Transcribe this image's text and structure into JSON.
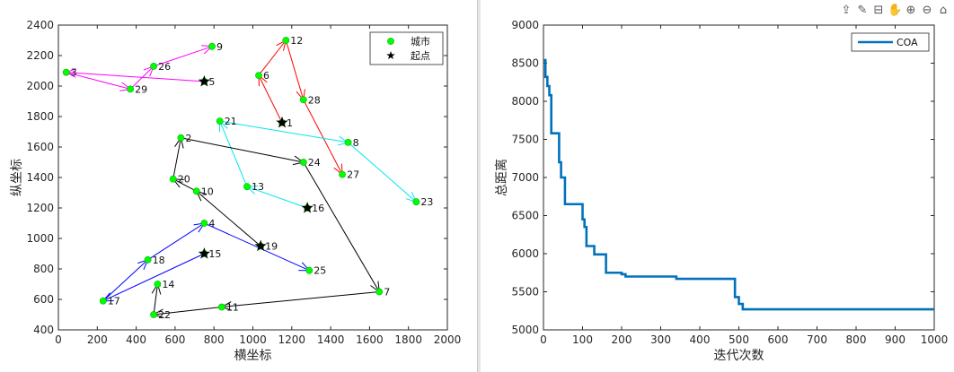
{
  "chart_data": [
    {
      "type": "scatter",
      "title": "",
      "xlabel": "横坐标",
      "ylabel": "纵坐标",
      "xlim": [
        0,
        2000
      ],
      "ylim": [
        400,
        2400
      ],
      "xticks": [
        "0",
        "200",
        "400",
        "600",
        "800",
        "1000",
        "1200",
        "1400",
        "1600",
        "1800",
        "2000"
      ],
      "yticks": [
        "400",
        "600",
        "800",
        "1000",
        "1200",
        "1400",
        "1600",
        "1800",
        "2000",
        "2200",
        "2400"
      ],
      "legend": {
        "position": "top-right",
        "entries": [
          "城市",
          "起点"
        ]
      },
      "cities": [
        {
          "id": "1",
          "x": 1150,
          "y": 1760
        },
        {
          "id": "2",
          "x": 630,
          "y": 1660
        },
        {
          "id": "3",
          "x": 40,
          "y": 2090
        },
        {
          "id": "4",
          "x": 750,
          "y": 1100
        },
        {
          "id": "5",
          "x": 750,
          "y": 2030
        },
        {
          "id": "6",
          "x": 1030,
          "y": 2070
        },
        {
          "id": "7",
          "x": 1650,
          "y": 650
        },
        {
          "id": "8",
          "x": 1490,
          "y": 1630
        },
        {
          "id": "9",
          "x": 790,
          "y": 2260
        },
        {
          "id": "10",
          "x": 710,
          "y": 1310
        },
        {
          "id": "11",
          "x": 840,
          "y": 550
        },
        {
          "id": "12",
          "x": 1170,
          "y": 2300
        },
        {
          "id": "13",
          "x": 970,
          "y": 1340
        },
        {
          "id": "14",
          "x": 510,
          "y": 700
        },
        {
          "id": "15",
          "x": 750,
          "y": 900
        },
        {
          "id": "16",
          "x": 1280,
          "y": 1200
        },
        {
          "id": "17",
          "x": 230,
          "y": 590
        },
        {
          "id": "18",
          "x": 460,
          "y": 860
        },
        {
          "id": "19",
          "x": 1040,
          "y": 950
        },
        {
          "id": "20",
          "x": 590,
          "y": 1390
        },
        {
          "id": "21",
          "x": 830,
          "y": 1770
        },
        {
          "id": "22",
          "x": 490,
          "y": 500
        },
        {
          "id": "23",
          "x": 1840,
          "y": 1240
        },
        {
          "id": "24",
          "x": 1260,
          "y": 1500
        },
        {
          "id": "25",
          "x": 1290,
          "y": 790
        },
        {
          "id": "26",
          "x": 490,
          "y": 2130
        },
        {
          "id": "27",
          "x": 1460,
          "y": 1420
        },
        {
          "id": "28",
          "x": 1260,
          "y": 1910
        },
        {
          "id": "29",
          "x": 370,
          "y": 1980
        }
      ],
      "start_points": [
        "1",
        "5",
        "15",
        "16",
        "19"
      ],
      "routes": [
        {
          "color": "#ff0000",
          "path": [
            "1",
            "6",
            "12",
            "28",
            "27"
          ]
        },
        {
          "color": "#ff00ff",
          "path": [
            "5",
            "3",
            "29",
            "26",
            "9"
          ]
        },
        {
          "color": "#00e5ee",
          "path": [
            "16",
            "13",
            "21",
            "8",
            "23"
          ]
        },
        {
          "color": "#0000ff",
          "path": [
            "15",
            "17",
            "18",
            "4",
            "25"
          ]
        },
        {
          "color": "#000000",
          "path": [
            "19",
            "10",
            "20",
            "2",
            "24",
            "7",
            "11",
            "22",
            "14"
          ]
        }
      ]
    },
    {
      "type": "line",
      "title": "",
      "xlabel": "迭代次数",
      "ylabel": "总距离",
      "xlim": [
        0,
        1000
      ],
      "ylim": [
        5000,
        9000
      ],
      "xticks": [
        "0",
        "100",
        "200",
        "300",
        "400",
        "500",
        "600",
        "700",
        "800",
        "900",
        "1000"
      ],
      "yticks": [
        "5000",
        "5500",
        "6000",
        "6500",
        "7000",
        "7500",
        "8000",
        "8500",
        "9000"
      ],
      "legend": {
        "position": "top-right",
        "entries": [
          "COA"
        ]
      },
      "series": [
        {
          "name": "COA",
          "color": "#0072bd",
          "points": [
            [
              0,
              8540
            ],
            [
              5,
              8540
            ],
            [
              5,
              8320
            ],
            [
              10,
              8320
            ],
            [
              10,
              8200
            ],
            [
              15,
              8200
            ],
            [
              15,
              8080
            ],
            [
              20,
              8080
            ],
            [
              20,
              7580
            ],
            [
              40,
              7580
            ],
            [
              40,
              7200
            ],
            [
              45,
              7200
            ],
            [
              45,
              7000
            ],
            [
              55,
              7000
            ],
            [
              55,
              6650
            ],
            [
              100,
              6650
            ],
            [
              100,
              6450
            ],
            [
              105,
              6450
            ],
            [
              105,
              6350
            ],
            [
              110,
              6350
            ],
            [
              110,
              6100
            ],
            [
              130,
              6100
            ],
            [
              130,
              5990
            ],
            [
              160,
              5990
            ],
            [
              160,
              5750
            ],
            [
              200,
              5750
            ],
            [
              200,
              5730
            ],
            [
              210,
              5730
            ],
            [
              210,
              5700
            ],
            [
              340,
              5700
            ],
            [
              340,
              5670
            ],
            [
              490,
              5670
            ],
            [
              490,
              5430
            ],
            [
              500,
              5430
            ],
            [
              500,
              5340
            ],
            [
              510,
              5340
            ],
            [
              510,
              5270
            ],
            [
              1000,
              5270
            ]
          ]
        }
      ]
    }
  ],
  "toolbar": {
    "icons": [
      "export-icon",
      "brush-icon",
      "datatip-icon",
      "pan-icon",
      "zoom-in-icon",
      "zoom-out-icon",
      "home-icon"
    ],
    "glyphs": [
      "⇪",
      "✎",
      "⊟",
      "✋",
      "⊕",
      "⊖",
      "⌂"
    ]
  }
}
